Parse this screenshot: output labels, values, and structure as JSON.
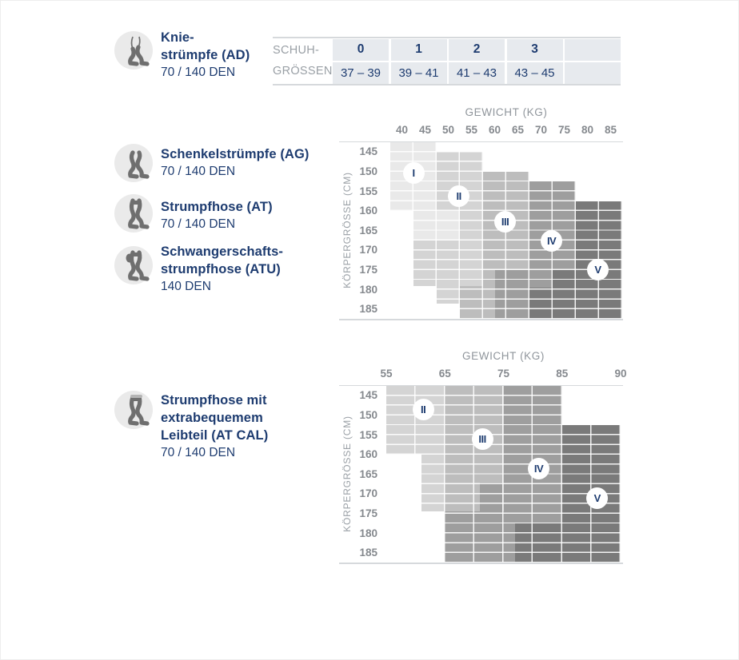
{
  "colors": {
    "navy": "#1e3c70",
    "axis_gray": "#85898e",
    "muted_gray": "#9aa0a6",
    "table_cell_bg": "#e7eaee",
    "rule_gray": "#d6d9dc",
    "icon_gray": "#6f6f6f",
    "icon_circle_bg": "#eaeaea",
    "zone_circle_bg": "#ffffff",
    "zone_I": "#e9e9e9",
    "zone_II": "#d4d4d4",
    "zone_III": "#bdbdbd",
    "zone_IV": "#9e9e9e",
    "zone_V": "#7a7a7a"
  },
  "products": [
    {
      "icon": "knee-stocking",
      "name_lines": [
        "Knie-",
        "strümpfe (AD)"
      ],
      "den": "70 / 140 DEN"
    },
    {
      "icon": "thigh-stocking",
      "name_lines": [
        "Schenkelstrümpfe (AG)"
      ],
      "den": "70 / 140 DEN"
    },
    {
      "icon": "tights",
      "name_lines": [
        "Strumpfhose (AT)"
      ],
      "den": "70 / 140 DEN"
    },
    {
      "icon": "maternity-tights",
      "name_lines": [
        "Schwangerschafts-",
        "strumpfhose (ATU)"
      ],
      "den": "140 DEN"
    },
    {
      "icon": "comfort-waist-tights",
      "name_lines": [
        "Strumpfhose mit",
        "extrabequemem",
        "Leibteil (AT CAL)"
      ],
      "den": "70 / 140 DEN"
    }
  ],
  "shoe_table": {
    "label_lines": [
      "SCHUH-",
      "GRÖSSEN"
    ],
    "sizes": [
      "0",
      "1",
      "2",
      "3"
    ],
    "eu_ranges": [
      "37 – 39",
      "39 – 41",
      "41 – 43",
      "43 – 45"
    ],
    "trailing_empty_column": true
  },
  "chart_data": [
    {
      "type": "heatmap",
      "title": "GEWICHT (KG)",
      "xlabel": "GEWICHT (KG)",
      "ylabel": "KÖRPERGRÖSSE (CM)",
      "x_ticks": [
        "40",
        "45",
        "50",
        "55",
        "60",
        "65",
        "70",
        "75",
        "80",
        "85"
      ],
      "x_tick_placement": "center",
      "y_ticks": [
        "145",
        "150",
        "155",
        "160",
        "165",
        "170",
        "175",
        "180",
        "185"
      ],
      "grid": true,
      "zones": [
        {
          "numeral": "I",
          "color": "#e9e9e9",
          "circle": [
            1.0,
            1.55
          ],
          "cells": [
            [
              0,
              2,
              0,
              3.5
            ],
            [
              1,
              3,
              3.5,
              5
            ]
          ]
        },
        {
          "numeral": "II",
          "color": "#d4d4d4",
          "circle": [
            2.95,
            2.75
          ],
          "cells": [
            [
              2,
              4,
              0.5,
              3.5
            ],
            [
              3,
              4,
              3.5,
              5
            ],
            [
              1,
              4,
              5,
              7.3
            ],
            [
              2,
              3,
              7.3,
              8.2
            ]
          ]
        },
        {
          "numeral": "III",
          "color": "#bdbdbd",
          "circle": [
            4.95,
            4.05
          ],
          "cells": [
            [
              4,
              6,
              1.5,
              7.3
            ],
            [
              3,
              6,
              7.3,
              9
            ]
          ]
        },
        {
          "numeral": "IV",
          "color": "#9e9e9e",
          "circle": [
            6.95,
            5.0
          ],
          "cells": [
            [
              6,
              8,
              2,
              9
            ],
            [
              4.5,
              6,
              6.5,
              9
            ]
          ]
        },
        {
          "numeral": "V",
          "color": "#7a7a7a",
          "circle": [
            8.95,
            6.5
          ],
          "cells": [
            [
              8,
              10,
              3,
              9
            ],
            [
              7,
              8,
              6.5,
              9
            ],
            [
              6,
              7,
              7.4,
              9
            ]
          ]
        }
      ]
    },
    {
      "type": "heatmap",
      "title": "GEWICHT (KG)",
      "xlabel": "GEWICHT (KG)",
      "ylabel": "KÖRPERGRÖSSE (CM)",
      "x_ticks": [
        "55",
        "65",
        "75",
        "85",
        "90"
      ],
      "x_tick_placement": "edge",
      "y_ticks": [
        "145",
        "150",
        "155",
        "160",
        "165",
        "170",
        "175",
        "180",
        "185"
      ],
      "grid": true,
      "zones": [
        {
          "numeral": "II",
          "color": "#d4d4d4",
          "circle": [
            0.63,
            1.2
          ],
          "cells": [
            [
              0,
              1,
              0,
              3.5
            ],
            [
              0.6,
              1,
              3.5,
              6.4
            ]
          ]
        },
        {
          "numeral": "III",
          "color": "#bdbdbd",
          "circle": [
            1.64,
            2.7
          ],
          "cells": [
            [
              1,
              2,
              0,
              6.4
            ]
          ]
        },
        {
          "numeral": "IV",
          "color": "#9e9e9e",
          "circle": [
            2.6,
            4.2
          ],
          "cells": [
            [
              2,
              3,
              0,
              6.4
            ],
            [
              1.6,
              2,
              4.9,
              6.4
            ],
            [
              1,
              3,
              6.4,
              9
            ]
          ]
        },
        {
          "numeral": "V",
          "color": "#7a7a7a",
          "circle": [
            3.6,
            5.7
          ],
          "cells": [
            [
              3,
              4,
              2,
              9
            ],
            [
              2.2,
              3,
              7,
              9
            ]
          ]
        }
      ]
    }
  ]
}
